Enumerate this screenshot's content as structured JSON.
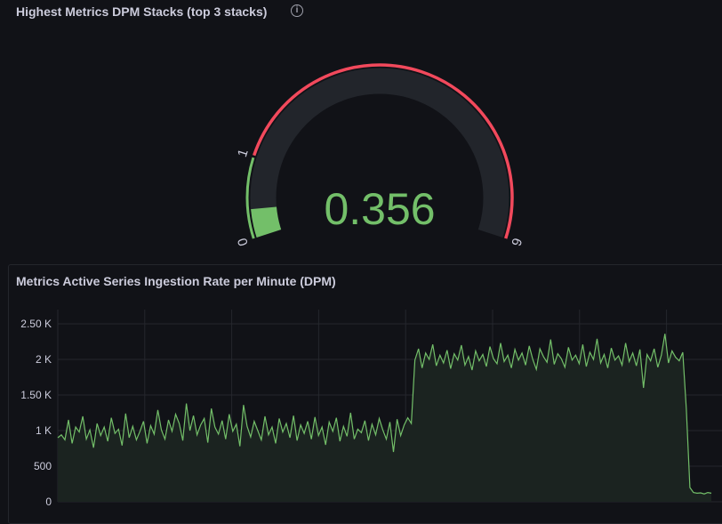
{
  "gauge_panel": {
    "title": "Highest Metrics DPM Stacks (top 3 stacks)",
    "info_icon": "info-circle-icon",
    "value": 0.356,
    "value_text": "0.356",
    "min": 0,
    "max": 6,
    "threshold_labels": [
      "0",
      "1",
      "6"
    ],
    "thresholds": [
      {
        "value": 0,
        "color": "#73bf69"
      },
      {
        "value": 1,
        "color": "#f2495c"
      }
    ],
    "value_color": "#73bf69"
  },
  "chart_panel": {
    "title": "Metrics Active Series Ingestion Rate per Minute (DPM)"
  },
  "chart_data": {
    "type": "area",
    "title": "Metrics Active Series Ingestion Rate per Minute (DPM)",
    "ylim": [
      0,
      2500
    ],
    "yticks": [
      "0",
      "500",
      "1 K",
      "1.50 K",
      "2 K",
      "2.50 K"
    ],
    "ytick_values": [
      0,
      500,
      1000,
      1500,
      2000,
      2500
    ],
    "grid": true,
    "line_color": "#73bf69",
    "series": [
      {
        "values": [
          900,
          940,
          870,
          1150,
          820,
          1050,
          980,
          1200,
          880,
          1010,
          760,
          1100,
          930,
          1050,
          850,
          1180,
          960,
          1020,
          790,
          1240,
          900,
          1060,
          870,
          990,
          1130,
          820,
          1070,
          950,
          1290,
          1010,
          880,
          1150,
          990,
          1230,
          1100,
          860,
          1380,
          1000,
          1210,
          940,
          1080,
          1170,
          830,
          1310,
          1050,
          950,
          1140,
          880,
          1230,
          990,
          1090,
          780,
          1360,
          1060,
          910,
          1130,
          1000,
          870,
          1200,
          940,
          1050,
          820,
          1170,
          980,
          1100,
          900,
          1210,
          860,
          1080,
          960,
          1130,
          880,
          1190,
          930,
          1050,
          800,
          1120,
          990,
          1180,
          850,
          1060,
          920,
          1250,
          880,
          1020,
          970,
          1140,
          860,
          1090,
          940,
          1170,
          1010,
          880,
          1120,
          700,
          1160,
          930,
          1080,
          1180,
          1100,
          1990,
          2150,
          1880,
          2090,
          2000,
          2210,
          1910,
          2060,
          1950,
          2130,
          1870,
          2080,
          1990,
          2200,
          1920,
          2040,
          1850,
          2120,
          1980,
          2070,
          1900,
          2180,
          2010,
          1940,
          2230,
          1970,
          2060,
          1880,
          2140,
          1990,
          2090,
          1920,
          2190,
          2000,
          1860,
          2150,
          2040,
          1960,
          2280,
          1930,
          2080,
          2010,
          1890,
          2170,
          1990,
          2060,
          1940,
          2210,
          1900,
          2100,
          2000,
          2290,
          1950,
          2070,
          1880,
          2160,
          1990,
          2050,
          1920,
          2230,
          1970,
          2090,
          1910,
          2140,
          1600,
          2070,
          1980,
          2150,
          1890,
          2060,
          2360,
          1950,
          2120,
          2030,
          1980,
          2100,
          1300,
          200,
          130,
          120,
          125,
          110,
          130,
          120
        ]
      }
    ]
  }
}
